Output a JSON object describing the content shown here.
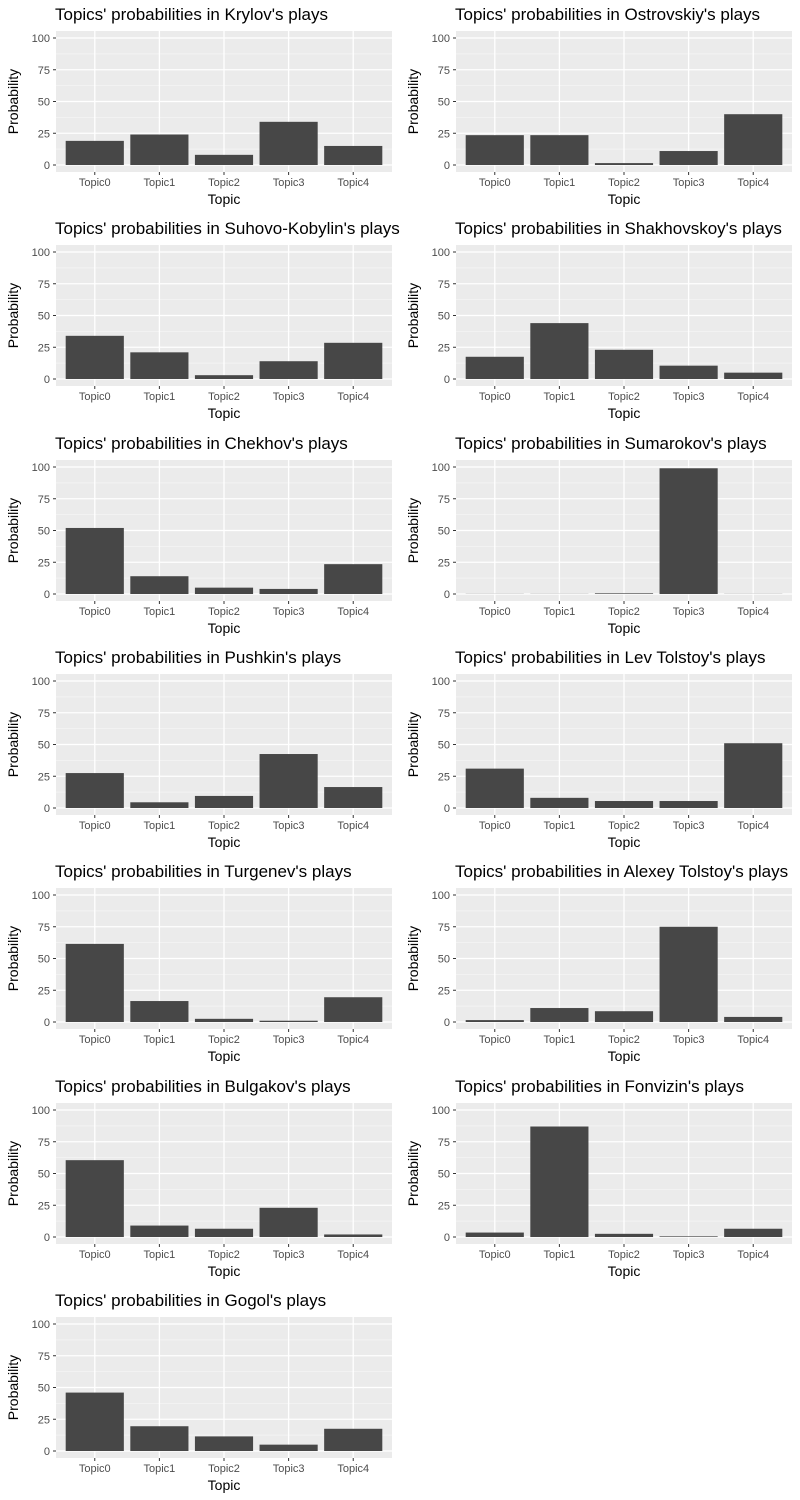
{
  "chart_data": [
    {
      "type": "bar",
      "title": "Topics' probabilities in Krylov's plays",
      "xlabel": "Topic",
      "ylabel": "Probability",
      "categories": [
        "Topic0",
        "Topic1",
        "Topic2",
        "Topic3",
        "Topic4"
      ],
      "values": [
        19,
        24,
        8,
        34,
        15
      ],
      "ylim": [
        0,
        100
      ],
      "yticks": [
        "0",
        "25",
        "50",
        "75",
        "100"
      ],
      "grid": true
    },
    {
      "type": "bar",
      "title": "Topics' probabilities in Ostrovskiy's plays",
      "xlabel": "Topic",
      "ylabel": "Probability",
      "categories": [
        "Topic0",
        "Topic1",
        "Topic2",
        "Topic3",
        "Topic4"
      ],
      "values": [
        23.5,
        23.5,
        1.5,
        11,
        40
      ],
      "ylim": [
        0,
        100
      ],
      "yticks": [
        "0",
        "25",
        "50",
        "75",
        "100"
      ],
      "grid": true
    },
    {
      "type": "bar",
      "title": "Topics' probabilities in Suhovo-Kobylin's plays",
      "xlabel": "Topic",
      "ylabel": "Probability",
      "categories": [
        "Topic0",
        "Topic1",
        "Topic2",
        "Topic3",
        "Topic4"
      ],
      "values": [
        34,
        21,
        3,
        14,
        28.5
      ],
      "ylim": [
        0,
        100
      ],
      "yticks": [
        "0",
        "25",
        "50",
        "75",
        "100"
      ],
      "grid": true
    },
    {
      "type": "bar",
      "title": "Topics' probabilities in Shakhovskoy's plays",
      "xlabel": "Topic",
      "ylabel": "Probability",
      "categories": [
        "Topic0",
        "Topic1",
        "Topic2",
        "Topic3",
        "Topic4"
      ],
      "values": [
        17.5,
        44,
        23,
        10.5,
        5
      ],
      "ylim": [
        0,
        100
      ],
      "yticks": [
        "0",
        "25",
        "50",
        "75",
        "100"
      ],
      "grid": true
    },
    {
      "type": "bar",
      "title": "Topics' probabilities in Chekhov's plays",
      "xlabel": "Topic",
      "ylabel": "Probability",
      "categories": [
        "Topic0",
        "Topic1",
        "Topic2",
        "Topic3",
        "Topic4"
      ],
      "values": [
        52,
        14,
        5,
        4,
        23.5
      ],
      "ylim": [
        0,
        100
      ],
      "yticks": [
        "0",
        "25",
        "50",
        "75",
        "100"
      ],
      "grid": true
    },
    {
      "type": "bar",
      "title": "Topics' probabilities in Sumarokov's plays",
      "xlabel": "Topic",
      "ylabel": "Probability",
      "categories": [
        "Topic0",
        "Topic1",
        "Topic2",
        "Topic3",
        "Topic4"
      ],
      "values": [
        0.1,
        0.1,
        0.5,
        99,
        0.1
      ],
      "ylim": [
        0,
        100
      ],
      "yticks": [
        "0",
        "25",
        "50",
        "75",
        "100"
      ],
      "grid": true
    },
    {
      "type": "bar",
      "title": "Topics' probabilities in Pushkin's plays",
      "xlabel": "Topic",
      "ylabel": "Probability",
      "categories": [
        "Topic0",
        "Topic1",
        "Topic2",
        "Topic3",
        "Topic4"
      ],
      "values": [
        27.5,
        4.5,
        9.5,
        42.5,
        16.5
      ],
      "ylim": [
        0,
        100
      ],
      "yticks": [
        "0",
        "25",
        "50",
        "75",
        "100"
      ],
      "grid": true
    },
    {
      "type": "bar",
      "title": "Topics' probabilities in Lev Tolstoy's plays",
      "xlabel": "Topic",
      "ylabel": "Probability",
      "categories": [
        "Topic0",
        "Topic1",
        "Topic2",
        "Topic3",
        "Topic4"
      ],
      "values": [
        31,
        8,
        5.5,
        5.5,
        51
      ],
      "ylim": [
        0,
        100
      ],
      "yticks": [
        "0",
        "25",
        "50",
        "75",
        "100"
      ],
      "grid": true
    },
    {
      "type": "bar",
      "title": "Topics' probabilities in Turgenev's plays",
      "xlabel": "Topic",
      "ylabel": "Probability",
      "categories": [
        "Topic0",
        "Topic1",
        "Topic2",
        "Topic3",
        "Topic4"
      ],
      "values": [
        61.5,
        16.5,
        2.5,
        1,
        19.5
      ],
      "ylim": [
        0,
        100
      ],
      "yticks": [
        "0",
        "25",
        "50",
        "75",
        "100"
      ],
      "grid": true
    },
    {
      "type": "bar",
      "title": "Topics' probabilities in Alexey Tolstoy's plays",
      "xlabel": "Topic",
      "ylabel": "Probability",
      "categories": [
        "Topic0",
        "Topic1",
        "Topic2",
        "Topic3",
        "Topic4"
      ],
      "values": [
        1.5,
        11,
        8.5,
        75,
        4
      ],
      "ylim": [
        0,
        100
      ],
      "yticks": [
        "0",
        "25",
        "50",
        "75",
        "100"
      ],
      "grid": true
    },
    {
      "type": "bar",
      "title": "Topics' probabilities in Bulgakov's plays",
      "xlabel": "Topic",
      "ylabel": "Probability",
      "categories": [
        "Topic0",
        "Topic1",
        "Topic2",
        "Topic3",
        "Topic4"
      ],
      "values": [
        60.5,
        9,
        6.5,
        23,
        2
      ],
      "ylim": [
        0,
        100
      ],
      "yticks": [
        "0",
        "25",
        "50",
        "75",
        "100"
      ],
      "grid": true
    },
    {
      "type": "bar",
      "title": "Topics' probabilities in Fonvizin's plays",
      "xlabel": "Topic",
      "ylabel": "Probability",
      "categories": [
        "Topic0",
        "Topic1",
        "Topic2",
        "Topic3",
        "Topic4"
      ],
      "values": [
        3.5,
        87,
        2.5,
        0.5,
        6.5
      ],
      "ylim": [
        0,
        100
      ],
      "yticks": [
        "0",
        "25",
        "50",
        "75",
        "100"
      ],
      "grid": true
    },
    {
      "type": "bar",
      "title": "Topics' probabilities in Gogol's plays",
      "xlabel": "Topic",
      "ylabel": "Probability",
      "categories": [
        "Topic0",
        "Topic1",
        "Topic2",
        "Topic3",
        "Topic4"
      ],
      "values": [
        46,
        19.5,
        11.5,
        5,
        17.5
      ],
      "ylim": [
        0,
        100
      ],
      "yticks": [
        "0",
        "25",
        "50",
        "75",
        "100"
      ],
      "grid": true
    }
  ],
  "colors": {
    "panel_background": "#ebebeb",
    "grid_major": "#ffffff",
    "grid_minor": "#f5f5f5",
    "bar_fill": "#474747",
    "tick_text": "#4d4d4d",
    "axis_text": "#000000"
  }
}
